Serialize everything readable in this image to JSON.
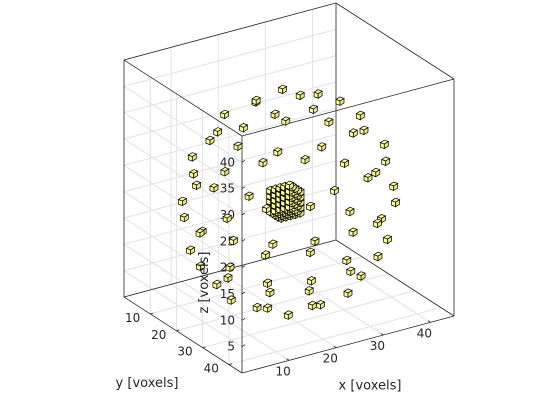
{
  "chart_data": {
    "type": "scatter3d",
    "marker": "cube",
    "marker_color": "#ffff99",
    "marker_edge_color": "#000000",
    "grid": true,
    "box": true,
    "xlabel": "x [voxels]",
    "ylabel": "y [voxels]",
    "zlabel": "z [voxels]",
    "xlim": [
      0,
      45
    ],
    "ylim": [
      0,
      45
    ],
    "zlim": [
      0,
      45
    ],
    "xticks": [
      10,
      20,
      30,
      40
    ],
    "yticks": [
      10,
      20,
      30,
      40
    ],
    "zticks": [
      5,
      10,
      15,
      20,
      25,
      30,
      35,
      40
    ],
    "center": [
      22.5,
      22.5,
      20
    ],
    "shell": {
      "radius": 20,
      "rings": [
        {
          "polar_deg": 18,
          "count": 5
        },
        {
          "polar_deg": 42,
          "count": 10
        },
        {
          "polar_deg": 66,
          "count": 14
        },
        {
          "polar_deg": 90,
          "count": 16
        },
        {
          "polar_deg": 114,
          "count": 14
        },
        {
          "polar_deg": 138,
          "count": 10
        },
        {
          "polar_deg": 162,
          "count": 5
        }
      ]
    },
    "core": {
      "x": [
        20,
        21,
        22,
        23,
        24
      ],
      "y": [
        20,
        21,
        22,
        23,
        24
      ],
      "z": [
        18,
        19,
        20,
        21,
        22
      ]
    }
  }
}
